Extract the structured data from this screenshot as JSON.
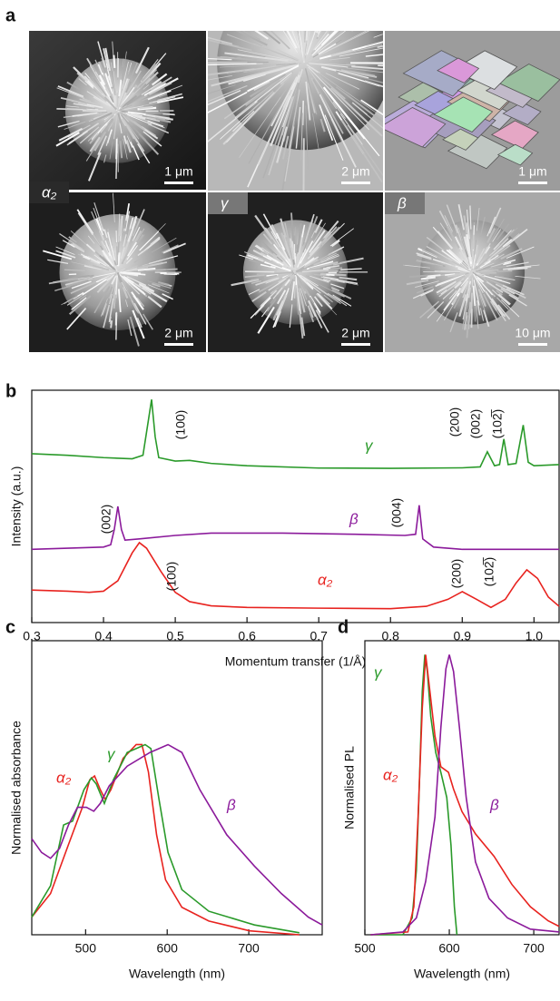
{
  "panel_labels": [
    "a",
    "b",
    "c",
    "d"
  ],
  "images": {
    "phase_labels": [
      "α₂",
      "γ",
      "β"
    ],
    "scale_bars": [
      "1 μm",
      "2 μm",
      "1 μm",
      "2 μm",
      "2 μm",
      "10 μm"
    ]
  },
  "chart_data": [
    {
      "type": "line",
      "xlabel": "Momentum transfer (1/Å)",
      "ylabel": "Intensity (a.u.)",
      "xlim": [
        0.3,
        1.035
      ],
      "xticks": [
        0.3,
        0.4,
        0.5,
        0.6,
        0.7,
        0.8,
        0.9,
        {
          "value": 1,
          "label": "1.0"
        }
      ],
      "ylim": [
        0,
        10
      ],
      "series": [
        {
          "name": "γ",
          "color": "#2a9a2a",
          "x": [
            0.3,
            0.35,
            0.4,
            0.44,
            0.455,
            0.46,
            0.467,
            0.472,
            0.477,
            0.5,
            0.52,
            0.55,
            0.6,
            0.7,
            0.8,
            0.9,
            0.925,
            0.935,
            0.945,
            0.952,
            0.958,
            0.964,
            0.975,
            0.985,
            0.992,
            1.0,
            1.035
          ],
          "values": [
            7.27,
            7.2,
            7.1,
            7.05,
            7.2,
            8.2,
            9.6,
            8.0,
            7.1,
            6.95,
            6.98,
            6.85,
            6.75,
            6.65,
            6.64,
            6.66,
            6.7,
            7.35,
            6.75,
            6.8,
            7.9,
            6.8,
            6.85,
            8.5,
            6.9,
            6.75,
            6.8
          ]
        },
        {
          "name": "β",
          "color": "#8b1a9b",
          "x": [
            0.3,
            0.35,
            0.4,
            0.41,
            0.415,
            0.42,
            0.425,
            0.43,
            0.45,
            0.5,
            0.55,
            0.65,
            0.75,
            0.82,
            0.835,
            0.84,
            0.845,
            0.86,
            0.9,
            1.0,
            1.035
          ],
          "values": [
            3.15,
            3.2,
            3.25,
            3.35,
            4.0,
            5.0,
            4.0,
            3.55,
            3.6,
            3.75,
            3.85,
            3.85,
            3.8,
            3.75,
            3.8,
            5.05,
            3.6,
            3.25,
            3.15,
            3.15,
            3.15
          ]
        },
        {
          "name": "α₂",
          "color": "#e8231f",
          "x": [
            0.3,
            0.35,
            0.38,
            0.4,
            0.42,
            0.44,
            0.45,
            0.46,
            0.48,
            0.5,
            0.52,
            0.55,
            0.6,
            0.7,
            0.8,
            0.85,
            0.88,
            0.9,
            0.92,
            0.94,
            0.96,
            0.975,
            0.99,
            1.005,
            1.02,
            1.035
          ],
          "values": [
            1.4,
            1.35,
            1.3,
            1.35,
            1.8,
            3.0,
            3.44,
            3.2,
            2.2,
            1.3,
            0.9,
            0.72,
            0.65,
            0.62,
            0.6,
            0.7,
            1.0,
            1.33,
            1.0,
            0.65,
            1.0,
            1.7,
            2.27,
            1.9,
            1.1,
            0.7
          ]
        }
      ],
      "annotations": [
        "(100)",
        "(002)",
        "(100)",
        "(004)",
        "(200)",
        "(002)",
        "(102̅)",
        "(200)",
        "(102̅)"
      ]
    },
    {
      "type": "line",
      "xlabel": "Wavelength (nm)",
      "ylabel": "Normalised absorbance",
      "xlim": [
        434,
        790
      ],
      "xticks": [
        500,
        600,
        700
      ],
      "ylim": [
        0,
        1.5
      ],
      "series": [
        {
          "name": "α₂",
          "color": "#e8231f",
          "x": [
            434,
            457,
            479,
            496,
            505,
            511,
            518,
            524,
            531,
            546,
            562,
            569,
            577,
            587,
            598,
            618,
            651,
            701,
            762
          ],
          "values": [
            0.09,
            0.21,
            0.46,
            0.65,
            0.79,
            0.81,
            0.74,
            0.69,
            0.74,
            0.9,
            0.97,
            0.97,
            0.83,
            0.51,
            0.28,
            0.14,
            0.07,
            0.02,
            0
          ]
        },
        {
          "name": "γ",
          "color": "#2a9a2a",
          "x": [
            434,
            457,
            473,
            484,
            498,
            507,
            513,
            523,
            534,
            551,
            573,
            580,
            590,
            601,
            618,
            651,
            707,
            762
          ],
          "values": [
            0.09,
            0.25,
            0.56,
            0.58,
            0.74,
            0.8,
            0.77,
            0.67,
            0.79,
            0.93,
            0.97,
            0.95,
            0.69,
            0.42,
            0.23,
            0.12,
            0.05,
            0.01
          ]
        },
        {
          "name": "β",
          "color": "#8b1a9b",
          "x": [
            434,
            446,
            457,
            468,
            479,
            490,
            501,
            510,
            518,
            529,
            551,
            579,
            601,
            618,
            640,
            673,
            707,
            740,
            773,
            790
          ],
          "values": [
            0.49,
            0.42,
            0.39,
            0.44,
            0.56,
            0.65,
            0.65,
            0.63,
            0.67,
            0.76,
            0.86,
            0.93,
            0.97,
            0.93,
            0.74,
            0.51,
            0.35,
            0.21,
            0.09,
            0.05
          ]
        }
      ]
    },
    {
      "type": "line",
      "xlabel": "Wavelength (nm)",
      "ylabel": "Normalised PL",
      "xlim": [
        500,
        730
      ],
      "xticks": [
        500,
        600,
        700
      ],
      "ylim": [
        0,
        1.05
      ],
      "series": [
        {
          "name": "γ",
          "color": "#2a9a2a",
          "x": [
            507,
            545,
            556,
            561,
            564,
            568,
            571,
            574,
            578,
            584,
            590,
            597,
            602,
            606,
            609
          ],
          "values": [
            0,
            0,
            0.06,
            0.23,
            0.49,
            0.87,
            1.0,
            0.94,
            0.78,
            0.65,
            0.58,
            0.49,
            0.32,
            0.1,
            0
          ]
        },
        {
          "name": "α₂",
          "color": "#e8231f",
          "x": [
            507,
            551,
            558,
            563,
            568,
            572,
            577,
            583,
            590,
            599,
            605,
            615,
            631,
            653,
            674,
            696,
            717,
            730
          ],
          "values": [
            0,
            0.01,
            0.1,
            0.42,
            0.81,
            1.0,
            0.87,
            0.71,
            0.6,
            0.58,
            0.52,
            0.44,
            0.36,
            0.28,
            0.18,
            0.1,
            0.05,
            0.03
          ]
        },
        {
          "name": "β",
          "color": "#8b1a9b",
          "x": [
            507,
            545,
            561,
            572,
            583,
            590,
            596,
            600,
            605,
            612,
            620,
            631,
            647,
            669,
            696,
            730
          ],
          "values": [
            0,
            0.01,
            0.06,
            0.19,
            0.42,
            0.74,
            0.95,
            1.0,
            0.94,
            0.74,
            0.49,
            0.26,
            0.13,
            0.06,
            0.02,
            0.01
          ]
        }
      ]
    }
  ]
}
